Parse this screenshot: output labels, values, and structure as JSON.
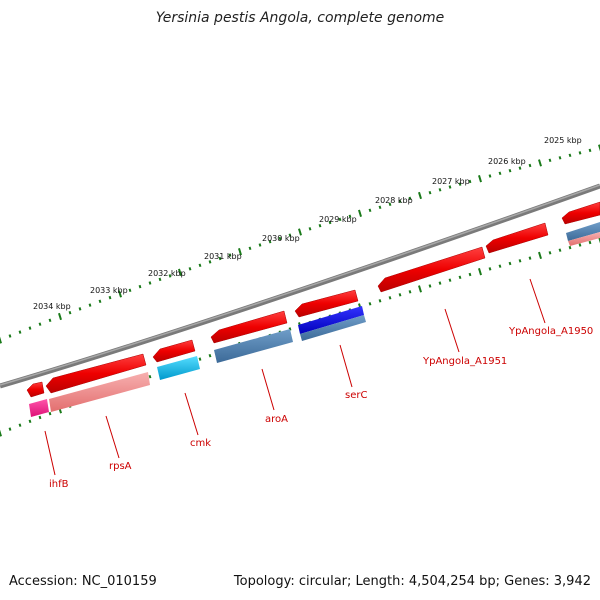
{
  "title": "Yersinia pestis Angola, complete genome",
  "footer": {
    "accession": "Accession: NC_010159",
    "summary": "Topology: circular; Length: 4,504,254 bp; Genes: 3,942"
  },
  "scale_ticks": [
    "2025 kbp",
    "2026 kbp",
    "2027 kbp",
    "2028 kbp",
    "2029 kbp",
    "2030 kbp",
    "2031 kbp",
    "2032 kbp",
    "2033 kbp",
    "2034 kbp"
  ],
  "gene_labels": [
    "ihfB",
    "rpsA",
    "cmk",
    "aroA",
    "serC",
    "YpAngola_A1951",
    "YpAngola_A1950"
  ],
  "colors": {
    "backbone": "#7a7a7a",
    "tick_dots": "#1a7a1a",
    "cds_reverse": "#ee0000",
    "cds_reverse_light": "#f08080",
    "gene_pink": "#ee1188",
    "gene_cyan": "#11bbee",
    "gene_steelblue": "#4a7faf",
    "gene_blue": "#0000dd",
    "label_red": "#cc0000"
  }
}
